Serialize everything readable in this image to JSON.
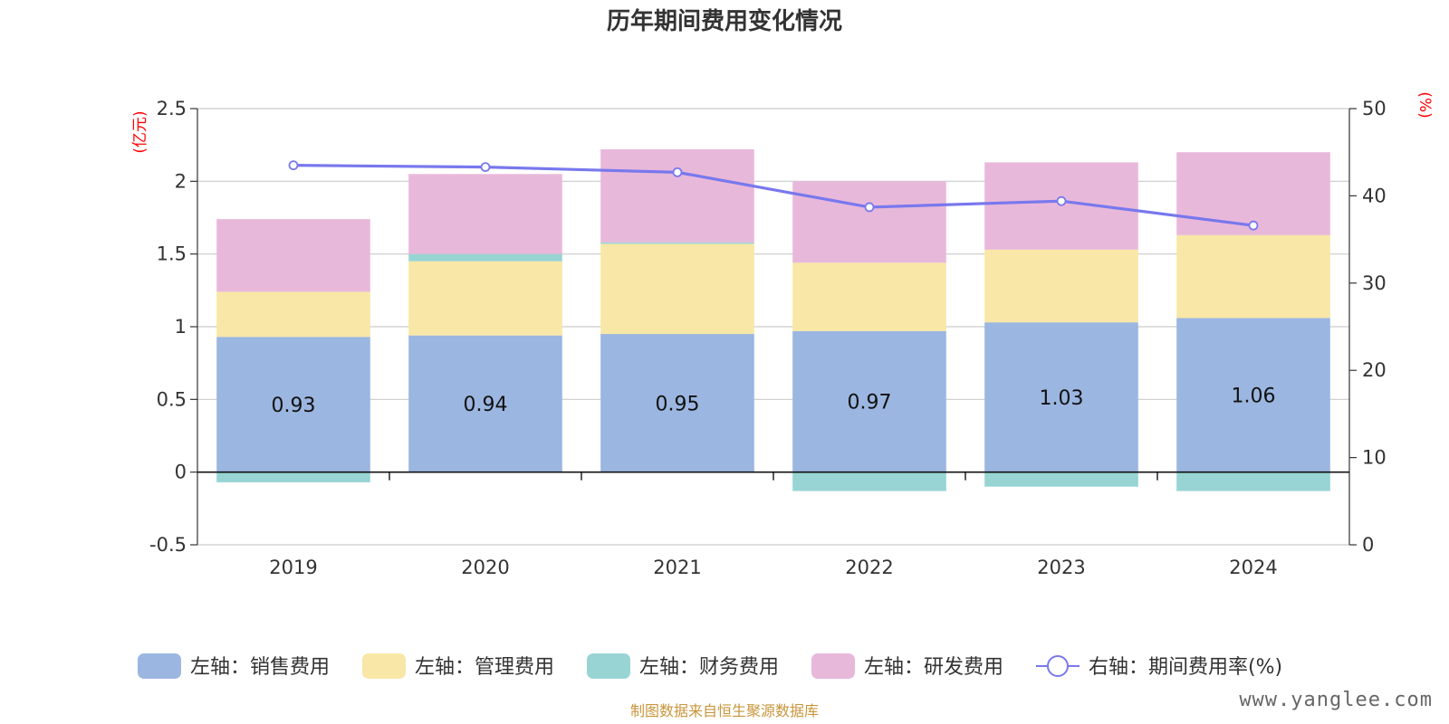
{
  "chart_data": {
    "type": "bar",
    "title": "历年期间费用变化情况",
    "categories": [
      "2019",
      "2020",
      "2021",
      "2022",
      "2023",
      "2024"
    ],
    "left_axis": {
      "unit": "(亿元)",
      "ylim": [
        -0.5,
        2.5
      ],
      "ticks": [
        "-0.5",
        "0",
        "0.5",
        "1",
        "1.5",
        "2",
        "2.5"
      ]
    },
    "right_axis": {
      "unit": "(%)",
      "ylim": [
        0,
        50
      ],
      "ticks": [
        "0",
        "10",
        "20",
        "30",
        "40",
        "50"
      ]
    },
    "series": [
      {
        "name": "左轴：销售费用",
        "type": "bar",
        "color": "#9bb6e0",
        "values": [
          0.93,
          0.94,
          0.95,
          0.97,
          1.03,
          1.06
        ],
        "labels": [
          "0.93",
          "0.94",
          "0.95",
          "0.97",
          "1.03",
          "1.06"
        ]
      },
      {
        "name": "左轴：管理费用",
        "type": "bar",
        "color": "#f8e7a6",
        "values": [
          0.31,
          0.51,
          0.62,
          0.47,
          0.5,
          0.57
        ]
      },
      {
        "name": "左轴：财务费用",
        "type": "bar",
        "color": "#98d4d4",
        "values": [
          -0.07,
          0.05,
          0.01,
          -0.13,
          -0.1,
          -0.13
        ]
      },
      {
        "name": "左轴：研发费用",
        "type": "bar",
        "color": "#e8b8da",
        "values": [
          0.5,
          0.55,
          0.64,
          0.56,
          0.6,
          0.57
        ]
      },
      {
        "name": "右轴：期间费用率(%)",
        "type": "line",
        "axis": "right",
        "color": "#7878ee",
        "values": [
          43.5,
          43.3,
          42.7,
          38.7,
          39.4,
          36.6
        ]
      }
    ],
    "grid": true,
    "legend_position": "bottom"
  },
  "source_note": "制图数据来自恒生聚源数据库",
  "watermark": "www.yanglee.com"
}
